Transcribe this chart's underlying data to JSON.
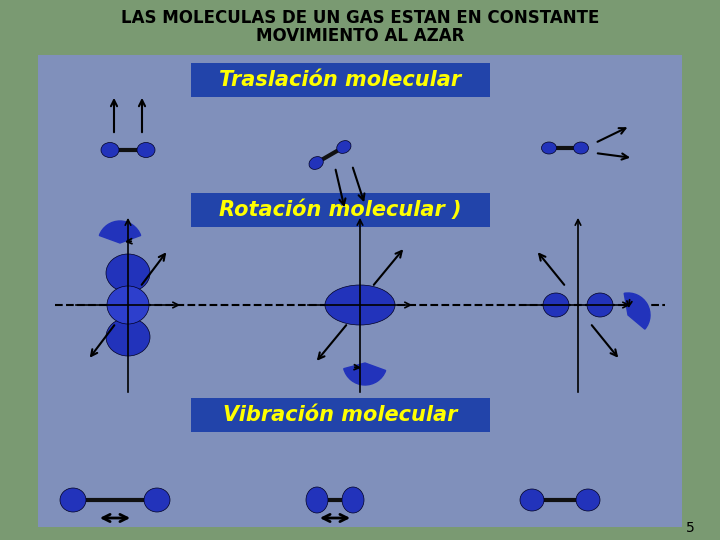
{
  "title_line1": "LAS MOLECULAS DE UN GAS ESTAN EN CONSTANTE",
  "title_line2": "MOVIMIENTO AL AZAR",
  "label_traslacion": "Traslación molecular",
  "label_rotacion": "Rotación molecular )",
  "label_vibracion": "Vibración molecular",
  "page_number": "5",
  "bg_outer": "#7a9a72",
  "bg_inner": "#8090bb",
  "title_color": "#000000",
  "label_color": "#ffff00",
  "label_bg": "#2244aa",
  "molecule_fill": "#2233bb",
  "molecule_edge": "#000022",
  "title_fontsize": 12,
  "label_fontsize": 15
}
